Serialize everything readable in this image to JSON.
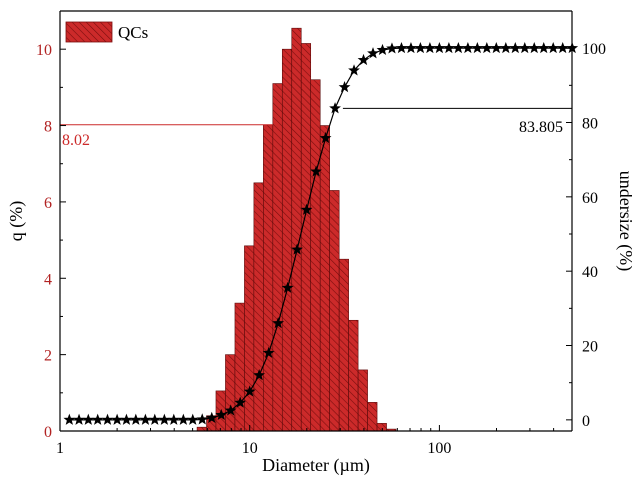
{
  "chart_data": {
    "type": "bar",
    "legend": {
      "label": "QCs",
      "position": "top-left"
    },
    "x_axis": {
      "label": "Diameter (µm)",
      "scale": "log",
      "range": [
        1,
        500
      ],
      "tick_labels": [
        "1",
        "10",
        "100"
      ],
      "tick_values": [
        1,
        10,
        100
      ]
    },
    "y_left": {
      "label": "q (%)",
      "range": [
        0,
        11
      ],
      "tick_labels": [
        "0",
        "2",
        "4",
        "6",
        "8",
        "10"
      ],
      "tick_values": [
        0,
        2,
        4,
        6,
        8,
        10
      ]
    },
    "y_right": {
      "label": "undersize (%)",
      "range": [
        -3,
        110
      ],
      "tick_labels": [
        "0",
        "20",
        "40",
        "60",
        "80",
        "100"
      ],
      "tick_values": [
        0,
        20,
        40,
        60,
        80,
        100
      ]
    },
    "bars": {
      "name": "QCs",
      "bin_edges": [
        5.28,
        5.92,
        6.64,
        7.45,
        8.36,
        9.38,
        10.52,
        11.8,
        13.24,
        14.85,
        16.66,
        18.69,
        20.97,
        23.53,
        26.4,
        29.62,
        33.23,
        37.28,
        41.82,
        46.92,
        52.64,
        59.06
      ],
      "values": [
        0.1,
        0.4,
        1.05,
        2.0,
        3.35,
        4.85,
        6.5,
        8.02,
        9.1,
        10.0,
        10.55,
        10.15,
        9.2,
        8.0,
        6.3,
        4.5,
        2.9,
        1.6,
        0.75,
        0.2,
        0.05
      ],
      "color": "#cc2a2a"
    },
    "cumulative": {
      "name": "undersize",
      "x": [
        1.12,
        1.26,
        1.41,
        1.58,
        1.78,
        2.0,
        2.24,
        2.51,
        2.82,
        3.16,
        3.55,
        3.98,
        4.47,
        5.01,
        5.62,
        6.31,
        7.08,
        7.94,
        8.91,
        10.0,
        11.22,
        12.59,
        14.13,
        15.85,
        17.78,
        19.95,
        22.39,
        25.12,
        28.18,
        31.62,
        35.48,
        39.81,
        44.67,
        50.12,
        56.23,
        63.1,
        70.8,
        79.4,
        89.1,
        100,
        112.2,
        125.9,
        141.3,
        158.5,
        177.8,
        199.5,
        223.9,
        251.2,
        281.8,
        316.2,
        354.8,
        398.1,
        446.7,
        501.2
      ],
      "y": [
        0,
        0,
        0,
        0,
        0,
        0,
        0,
        0,
        0,
        0,
        0,
        0,
        0,
        0,
        0.1,
        0.5,
        1.3,
        2.5,
        4.6,
        7.6,
        12.0,
        18.0,
        26.0,
        35.5,
        45.8,
        56.5,
        66.8,
        75.8,
        83.805,
        89.5,
        94.0,
        96.8,
        98.6,
        99.5,
        99.9,
        100,
        100,
        100,
        100,
        100,
        100,
        100,
        100,
        100,
        100,
        100,
        100,
        100,
        100,
        100,
        100,
        100,
        100,
        100
      ],
      "marker": "star",
      "color": "#000000"
    },
    "annotations": {
      "left_value": "8.02",
      "left_color": "#cc2a2a",
      "right_value": "83.805"
    },
    "colors": {
      "left_axis": "#b22222",
      "right_axis": "#000000",
      "bar_fill": "#cc2a2a",
      "bar_hatch": "#7a0e0e"
    }
  }
}
